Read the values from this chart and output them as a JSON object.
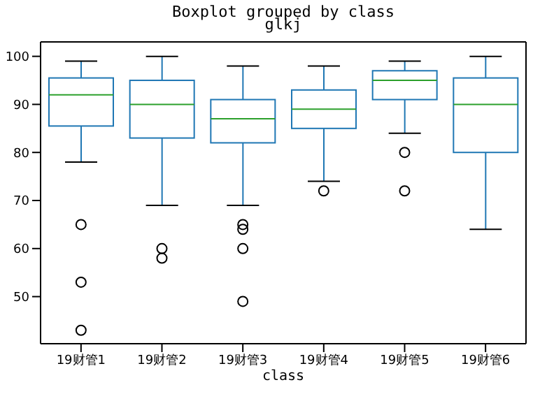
{
  "chart_data": {
    "type": "box",
    "title": "Boxplot grouped by class",
    "subtitle": "glkj",
    "xlabel": "class",
    "categories": [
      "19财管1",
      "19财管2",
      "19财管3",
      "19财管4",
      "19财管5",
      "19财管6"
    ],
    "color": "#1f77b4",
    "boxes": [
      {
        "low": 78,
        "q1": 85.5,
        "median": 92,
        "q3": 95.5,
        "high": 99,
        "outliers": [
          65,
          53,
          43
        ]
      },
      {
        "low": 69,
        "q1": 83,
        "median": 90,
        "q3": 95,
        "high": 100,
        "outliers": [
          60,
          58
        ]
      },
      {
        "low": 69,
        "q1": 82,
        "median": 87,
        "q3": 91,
        "high": 98,
        "outliers": [
          65,
          64,
          60,
          49
        ]
      },
      {
        "low": 74,
        "q1": 85,
        "median": 89,
        "q3": 93,
        "high": 98,
        "outliers": [
          72
        ]
      },
      {
        "low": 84,
        "q1": 91,
        "median": 95,
        "q3": 97,
        "high": 99,
        "outliers": [
          80,
          72
        ]
      },
      {
        "low": 64,
        "q1": 80,
        "median": 90,
        "q3": 95.5,
        "high": 100
      }
    ],
    "ylim": [
      40.2,
      103
    ],
    "yticks": [
      50,
      60,
      70,
      80,
      90,
      100
    ],
    "grid": false,
    "legend": false
  }
}
